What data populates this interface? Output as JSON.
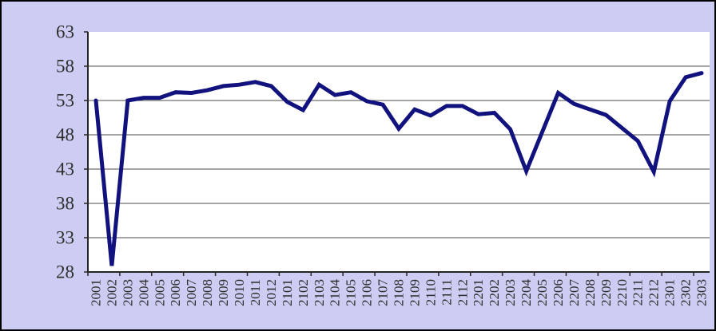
{
  "chart": {
    "background_color": "#CDCCF2",
    "plot_background_color": "#FFFFFF",
    "line_color": "#12127E",
    "grid_color": "#4D4D4D",
    "axis_color": "#262626",
    "label_color": "#2E2E2E"
  },
  "chart_data": {
    "type": "line",
    "title": "",
    "xlabel": "",
    "ylabel": "",
    "categories": [
      "2001",
      "2002",
      "2003",
      "2004",
      "2005",
      "2006",
      "2007",
      "2008",
      "2009",
      "2010",
      "2011",
      "2012",
      "2101",
      "2102",
      "2103",
      "2104",
      "2105",
      "2106",
      "2107",
      "2108",
      "2109",
      "2110",
      "2111",
      "2112",
      "2201",
      "2202",
      "2203",
      "2204",
      "2205",
      "2206",
      "2207",
      "2208",
      "2209",
      "2210",
      "2211",
      "2212",
      "2301",
      "2302",
      "2303"
    ],
    "values": [
      53.0,
      28.9,
      53.0,
      53.4,
      53.4,
      54.2,
      54.1,
      54.5,
      55.1,
      55.3,
      55.7,
      55.1,
      52.8,
      51.6,
      55.3,
      53.8,
      54.2,
      52.9,
      52.4,
      48.9,
      51.7,
      50.8,
      52.2,
      52.2,
      51.0,
      51.2,
      48.8,
      42.7,
      48.4,
      54.1,
      52.5,
      51.7,
      50.9,
      49.0,
      47.1,
      42.6,
      52.9,
      56.4,
      57.0
    ],
    "ylim": [
      28,
      63
    ],
    "yticks": [
      63,
      58,
      53,
      48,
      43,
      38,
      33,
      28
    ],
    "grid": true,
    "legend": false,
    "x_labels_rotated_degrees": -90
  }
}
